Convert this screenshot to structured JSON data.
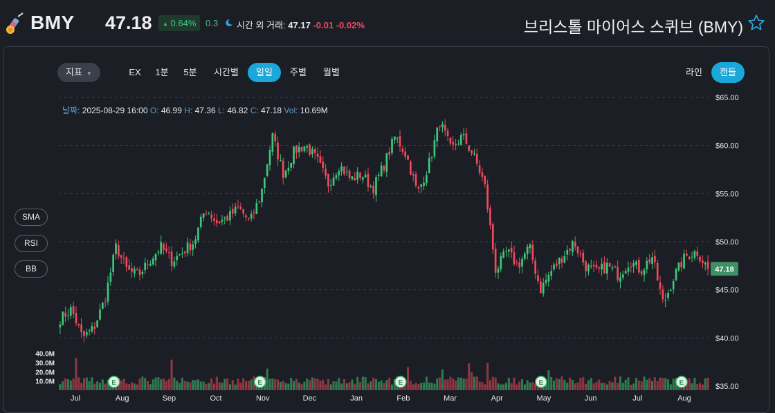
{
  "header": {
    "ticker": "BMY",
    "price": "47.18",
    "change_pct": "0.64%",
    "change_abs": "0.3",
    "after_hours_label": "시간 외 거래:",
    "after_hours_price": "47.17",
    "after_hours_change": "-0.01",
    "after_hours_pct": "-0.02%",
    "company_name": "브리스톨 마이어스 스퀴브 (BMY)"
  },
  "toolbar": {
    "indicator_label": "지표",
    "ranges": [
      "EX",
      "1분",
      "5분",
      "시간별",
      "일일",
      "주별",
      "월별"
    ],
    "active_range": "일일",
    "styles": [
      "라인",
      "캔들"
    ],
    "active_style": "캔들"
  },
  "ohlc": {
    "date_label": "날짜:",
    "date": "2025-08-29 16:00",
    "o_label": "O:",
    "o": "46.99",
    "h_label": "H:",
    "h": "47.36",
    "l_label": "L:",
    "l": "46.82",
    "c_label": "C:",
    "c": "47.18",
    "vol_label": "Vol:",
    "vol": "10.69M"
  },
  "side_buttons": [
    "SMA",
    "RSI",
    "BB"
  ],
  "colors": {
    "up": "#3fc77a",
    "down": "#f04a5d",
    "accent": "#1aa7d9",
    "price_tag": "#3e8f63"
  },
  "chart_data": {
    "type": "candlestick",
    "y_ticks": [
      "$65.00",
      "$60.00",
      "$55.00",
      "$50.00",
      "$45.00",
      "$40.00",
      "$35.00"
    ],
    "ylim": [
      35,
      65
    ],
    "volume_ticks": [
      "40.0M",
      "30.0M",
      "20.0M",
      "10.0M"
    ],
    "months": [
      "Jul",
      "Aug",
      "Sep",
      "Oct",
      "Nov",
      "Dec",
      "Jan",
      "Feb",
      "Mar",
      "Apr",
      "May",
      "Jun",
      "Jul",
      "Aug"
    ],
    "earnings_marker": "E",
    "earnings_month_index": [
      1,
      4,
      7,
      10,
      13
    ],
    "last_price": "47.18",
    "grid": true,
    "close_path": [
      42.0,
      43.0,
      40.0,
      41.0,
      44.0,
      49.5,
      47.0,
      46.5,
      48.0,
      49.5,
      48.0,
      49.0,
      50.0,
      53.5,
      52.0,
      52.5,
      53.5,
      52.0,
      55.0,
      61.0,
      57.0,
      59.5,
      60.0,
      58.5,
      56.0,
      58.0,
      56.5,
      57.0,
      55.5,
      58.0,
      61.0,
      59.0,
      55.0,
      58.0,
      62.5,
      59.5,
      61.0,
      59.0,
      56.0,
      47.0,
      49.0,
      47.5,
      49.5,
      45.0,
      47.0,
      48.5,
      50.0,
      47.5,
      46.8,
      47.5,
      46.5,
      48.0,
      47.0,
      48.5,
      43.5,
      46.5,
      48.5,
      49.0,
      47.18
    ]
  }
}
